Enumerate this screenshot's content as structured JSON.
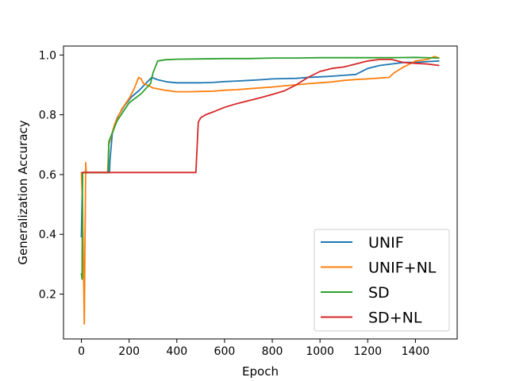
{
  "chart_data": {
    "type": "line",
    "title": "",
    "xlabel": "Epoch",
    "ylabel": "Generalization Accuracy",
    "xlim": [
      -75,
      1575
    ],
    "ylim": [
      0.05,
      1.03
    ],
    "xticks": [
      0,
      200,
      400,
      600,
      800,
      1000,
      1200,
      1400
    ],
    "yticks": [
      0.2,
      0.4,
      0.6,
      0.8,
      1.0
    ],
    "xtick_labels": [
      "0",
      "200",
      "400",
      "600",
      "800",
      "1000",
      "1200",
      "1400"
    ],
    "ytick_labels": [
      "0.2",
      "0.4",
      "0.6",
      "0.8",
      "1.0"
    ],
    "grid": false,
    "legend_position": "bottom-right",
    "series": [
      {
        "name": "UNIF",
        "color": "#1f77b4",
        "x": [
          0,
          5,
          10,
          118,
          120,
          130,
          150,
          180,
          210,
          240,
          270,
          295,
          320,
          360,
          400,
          450,
          500,
          550,
          600,
          650,
          700,
          750,
          800,
          850,
          900,
          950,
          1000,
          1050,
          1100,
          1150,
          1200,
          1250,
          1300,
          1350,
          1400,
          1450,
          1500
        ],
        "y": [
          0.39,
          0.607,
          0.607,
          0.607,
          0.65,
          0.74,
          0.79,
          0.83,
          0.86,
          0.88,
          0.905,
          0.925,
          0.917,
          0.91,
          0.907,
          0.907,
          0.907,
          0.908,
          0.911,
          0.913,
          0.915,
          0.917,
          0.92,
          0.921,
          0.922,
          0.925,
          0.927,
          0.929,
          0.932,
          0.935,
          0.955,
          0.965,
          0.97,
          0.975,
          0.975,
          0.978,
          0.98
        ]
      },
      {
        "name": "UNIF+NL",
        "color": "#ff7f0e",
        "x": [
          0,
          5,
          12,
          18,
          20,
          25,
          110,
          115,
          140,
          170,
          200,
          220,
          240,
          250,
          260,
          280,
          300,
          350,
          400,
          450,
          500,
          550,
          600,
          650,
          700,
          750,
          800,
          850,
          900,
          950,
          1000,
          1050,
          1100,
          1150,
          1200,
          1250,
          1290,
          1310,
          1350,
          1400,
          1450,
          1480,
          1500
        ],
        "y": [
          0.607,
          0.5,
          0.1,
          0.64,
          0.607,
          0.607,
          0.607,
          0.7,
          0.77,
          0.82,
          0.855,
          0.885,
          0.925,
          0.92,
          0.905,
          0.898,
          0.89,
          0.882,
          0.877,
          0.877,
          0.878,
          0.879,
          0.882,
          0.884,
          0.887,
          0.89,
          0.893,
          0.897,
          0.9,
          0.904,
          0.907,
          0.91,
          0.915,
          0.918,
          0.92,
          0.923,
          0.925,
          0.94,
          0.96,
          0.98,
          0.985,
          0.995,
          0.99
        ]
      },
      {
        "name": "SD",
        "color": "#2ca02c",
        "x": [
          0,
          3,
          5,
          10,
          112,
          115,
          150,
          200,
          250,
          290,
          300,
          320,
          350,
          400,
          500,
          600,
          700,
          800,
          900,
          1000,
          1100,
          1200,
          1300,
          1400,
          1500
        ],
        "y": [
          0.27,
          0.25,
          0.607,
          0.607,
          0.607,
          0.71,
          0.78,
          0.84,
          0.87,
          0.905,
          0.94,
          0.98,
          0.984,
          0.986,
          0.987,
          0.988,
          0.988,
          0.99,
          0.99,
          0.991,
          0.991,
          0.991,
          0.991,
          0.992,
          0.99
        ]
      },
      {
        "name": "SD+NL",
        "color": "#d62728",
        "x": [
          0,
          480,
          490,
          500,
          520,
          560,
          600,
          650,
          700,
          750,
          800,
          850,
          900,
          950,
          1000,
          1050,
          1100,
          1150,
          1200,
          1250,
          1300,
          1350,
          1400,
          1450,
          1500
        ],
        "y": [
          0.607,
          0.607,
          0.775,
          0.79,
          0.8,
          0.812,
          0.825,
          0.837,
          0.847,
          0.857,
          0.868,
          0.88,
          0.9,
          0.925,
          0.945,
          0.955,
          0.96,
          0.97,
          0.98,
          0.985,
          0.985,
          0.975,
          0.972,
          0.97,
          0.965
        ]
      }
    ]
  }
}
